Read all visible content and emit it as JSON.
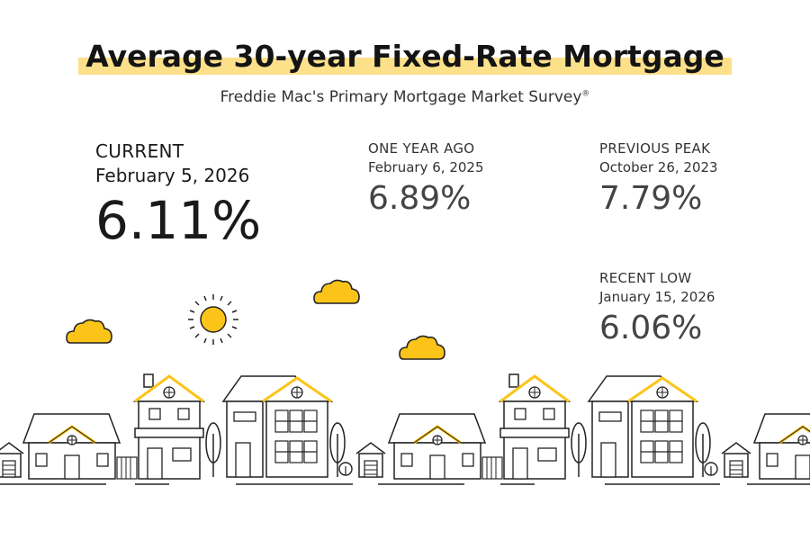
{
  "title": "Average 30-year Fixed-Rate Mortgage",
  "subtitle": "Freddie Mac's Primary Mortgage Market Survey",
  "subtitle_mark": "®",
  "current": {
    "label": "CURRENT",
    "date": "February 5, 2026",
    "value": "6.11%"
  },
  "one_year_ago": {
    "label": "ONE YEAR AGO",
    "date": "February 6, 2025",
    "value": "6.89%"
  },
  "previous_peak": {
    "label": "PREVIOUS PEAK",
    "date": "October 26, 2023",
    "value": "7.79%"
  },
  "recent_low": {
    "label": "RECENT LOW",
    "date": "January 15, 2026",
    "value": "6.06%"
  },
  "colors": {
    "accent": "#fcc419",
    "highlight": "#fde08a",
    "line": "#222222"
  },
  "icons": [
    "sun-icon",
    "cloud-icon",
    "house-icon",
    "tree-icon"
  ]
}
